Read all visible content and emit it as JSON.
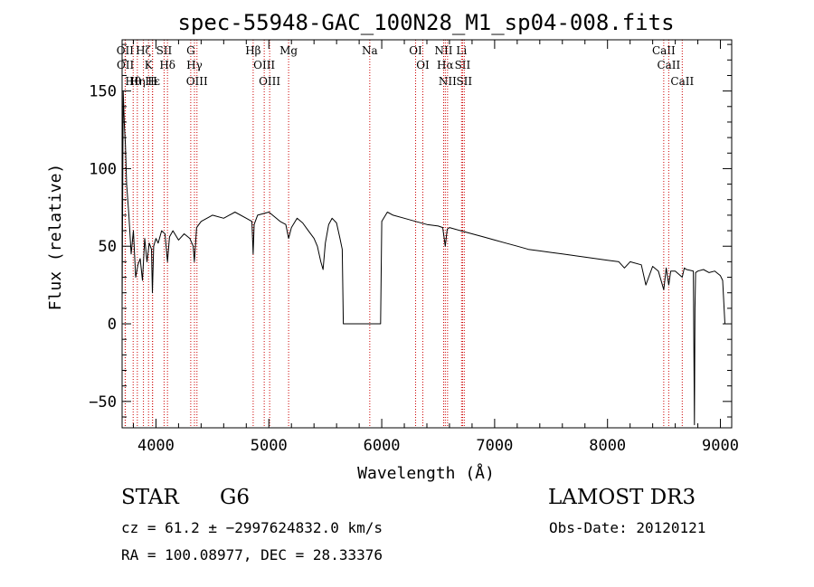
{
  "chart_data": {
    "type": "line",
    "title": "spec-55948-GAC_100N28_M1_sp04-008.fits",
    "xlabel": "Wavelength (Å)",
    "ylabel": "Flux (relative)",
    "xlim": [
      3700,
      9100
    ],
    "ylim": [
      -67,
      183
    ],
    "x_ticks": [
      4000,
      5000,
      6000,
      7000,
      8000,
      9000
    ],
    "x_tick_labels": [
      "4000",
      "5000",
      "6000",
      "7000",
      "8000",
      "9000"
    ],
    "y_ticks": [
      -50,
      0,
      50,
      100,
      150
    ],
    "y_tick_labels": [
      "−50",
      "0",
      "50",
      "100",
      "150"
    ],
    "grid": false,
    "series": [
      {
        "name": "flux",
        "x": [
          3700,
          3710,
          3720,
          3730,
          3740,
          3760,
          3780,
          3800,
          3820,
          3840,
          3860,
          3880,
          3900,
          3920,
          3940,
          3960,
          3968,
          3980,
          4000,
          4020,
          4050,
          4080,
          4102,
          4120,
          4150,
          4200,
          4250,
          4300,
          4330,
          4340,
          4360,
          4400,
          4500,
          4600,
          4700,
          4800,
          4850,
          4861,
          4870,
          4900,
          5000,
          5100,
          5150,
          5175,
          5200,
          5250,
          5300,
          5350,
          5400,
          5430,
          5460,
          5480,
          5500,
          5530,
          5560,
          5600,
          5630,
          5650,
          5660,
          5700,
          5800,
          5900,
          5950,
          5980,
          5990,
          6000,
          6050,
          6100,
          6200,
          6300,
          6400,
          6500,
          6540,
          6563,
          6580,
          6600,
          6700,
          6800,
          6900,
          7000,
          7100,
          7200,
          7300,
          7400,
          7500,
          7600,
          7700,
          7800,
          7900,
          8000,
          8100,
          8150,
          8200,
          8300,
          8340,
          8400,
          8450,
          8498,
          8520,
          8542,
          8560,
          8600,
          8662,
          8680,
          8700,
          8760,
          8770,
          8775,
          8780,
          8800,
          8850,
          8900,
          8950,
          9000,
          9020,
          9040
        ],
        "values": [
          10,
          150,
          128,
          115,
          90,
          70,
          45,
          60,
          30,
          38,
          42,
          28,
          55,
          40,
          52,
          48,
          20,
          50,
          55,
          52,
          60,
          58,
          40,
          56,
          60,
          54,
          58,
          55,
          50,
          40,
          62,
          66,
          70,
          68,
          72,
          68,
          66,
          45,
          64,
          70,
          72,
          66,
          64,
          55,
          62,
          68,
          65,
          60,
          55,
          50,
          40,
          35,
          52,
          64,
          68,
          65,
          55,
          48,
          0,
          0,
          0,
          0,
          0,
          0,
          0,
          66,
          72,
          70,
          68,
          66,
          64,
          63,
          62,
          50,
          61,
          62,
          60,
          58,
          56,
          54,
          52,
          50,
          48,
          47,
          46,
          45,
          44,
          43,
          42,
          41,
          40,
          36,
          40,
          38,
          25,
          37,
          34,
          22,
          36,
          25,
          34,
          34,
          30,
          36,
          35,
          34,
          -65,
          10,
          33,
          34,
          35,
          33,
          34,
          31,
          28,
          0
        ]
      }
    ],
    "lines": [
      {
        "label": "OII",
        "x": 3727
      },
      {
        "label": "OII",
        "x": 3729
      },
      {
        "label": "Hθ",
        "x": 3798
      },
      {
        "label": "Hη",
        "x": 3835
      },
      {
        "label": "Hζ",
        "x": 3889
      },
      {
        "label": "K",
        "x": 3934
      },
      {
        "label": "H",
        "x": 3969
      },
      {
        "label": "Hε",
        "x": 3970
      },
      {
        "label": "SII",
        "x": 4072
      },
      {
        "label": "Hδ",
        "x": 4102
      },
      {
        "label": "G",
        "x": 4308
      },
      {
        "label": "Hγ",
        "x": 4341
      },
      {
        "label": "OIII",
        "x": 4363
      },
      {
        "label": "Hβ",
        "x": 4861
      },
      {
        "label": "OIII",
        "x": 4959
      },
      {
        "label": "OIII",
        "x": 5007
      },
      {
        "label": "Mg",
        "x": 5175
      },
      {
        "label": "Na",
        "x": 5894
      },
      {
        "label": "OI",
        "x": 6300
      },
      {
        "label": "OI",
        "x": 6364
      },
      {
        "label": "NII",
        "x": 6548
      },
      {
        "label": "Hα",
        "x": 6563
      },
      {
        "label": "NII",
        "x": 6583
      },
      {
        "label": "Li",
        "x": 6707
      },
      {
        "label": "SII",
        "x": 6716
      },
      {
        "label": "SII",
        "x": 6731
      },
      {
        "label": "CaII",
        "x": 8498
      },
      {
        "label": "CaII",
        "x": 8542
      },
      {
        "label": "CaII",
        "x": 8662
      }
    ]
  },
  "info": {
    "object_class": "STAR",
    "subclass": "G6",
    "survey": "LAMOST DR3",
    "cz": "cz = 61.2 ± −2997624832.0 km/s",
    "obs_date": "Obs-Date: 20120121",
    "coords": "RA = 100.08977, DEC =  28.33376"
  },
  "colors": {
    "axis": "#000000",
    "spectrum": "#000000",
    "line_marker": "#cc0000"
  }
}
